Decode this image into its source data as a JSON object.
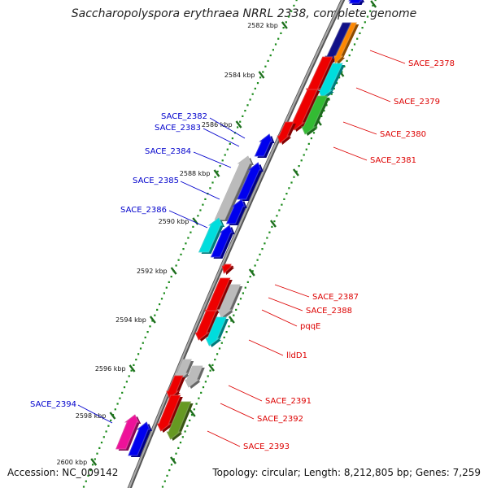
{
  "title": "Saccharopolyspora erythraea NRRL 2338, complete genome",
  "accession": "Accession: NC_009142",
  "topology": "Topology: circular; Length: 8,212,805 bp; Genes: 7,259",
  "colors": {
    "backbone": "#8a8a8a",
    "forward_label": "#0000cc",
    "reverse_label": "#dd0000",
    "tick_minor": "#1a8a1a",
    "tick_major": "#1f6f1f"
  },
  "ticks": [
    "2582 kbp",
    "2584 kbp",
    "2586 kbp",
    "2588 kbp",
    "2590 kbp",
    "2592 kbp",
    "2594 kbp",
    "2596 kbp",
    "2598 kbp",
    "2600 kbp"
  ],
  "forward_genes": [
    {
      "name": "SACE_2382",
      "color": "#0000ee"
    },
    {
      "name": "SACE_2383",
      "color": "#bbbbbb"
    },
    {
      "name": "SACE_2384",
      "color": "#0000ee"
    },
    {
      "name": "SACE_2385",
      "color": "#0000ee"
    },
    {
      "name": "SACE_2386",
      "color": "#00dddd"
    },
    {
      "name": "SACE_2394",
      "color": "#ee1199"
    }
  ],
  "reverse_genes": [
    {
      "name": "SACE_2378",
      "color": "#ff8800"
    },
    {
      "name": "SACE_2379",
      "color": "#00dddd"
    },
    {
      "name": "SACE_2380",
      "color": "#33bb33"
    },
    {
      "name": "SACE_2381",
      "color": "#ee0000"
    },
    {
      "name": "SACE_2387",
      "color": "#ee0000"
    },
    {
      "name": "SACE_2388",
      "color": "#bbbbbb"
    },
    {
      "name": "pqqE",
      "color": "#ee0000"
    },
    {
      "name": "lldD1",
      "color": "#00dddd"
    },
    {
      "name": "SACE_2391",
      "color": "#bbbbbb"
    },
    {
      "name": "SACE_2392",
      "color": "#ee0000"
    },
    {
      "name": "SACE_2393",
      "color": "#669922"
    }
  ]
}
